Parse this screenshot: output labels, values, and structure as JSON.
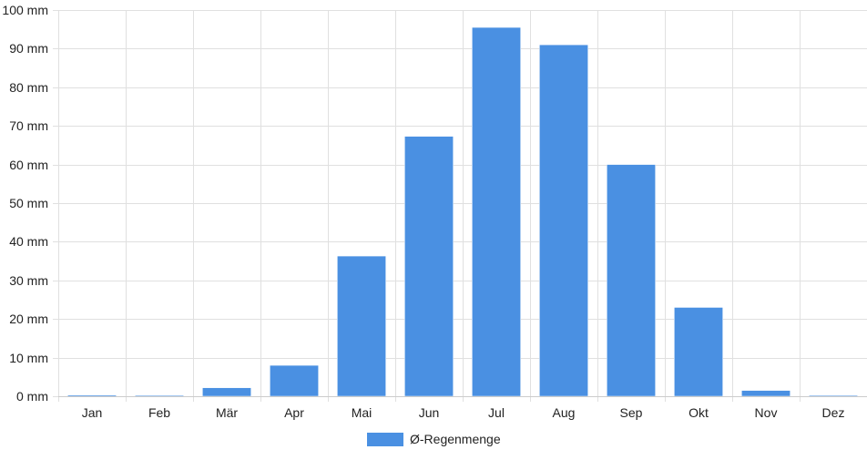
{
  "chart_data": {
    "type": "bar",
    "categories": [
      "Jan",
      "Feb",
      "Mär",
      "Apr",
      "Mai",
      "Jun",
      "Jul",
      "Aug",
      "Sep",
      "Okt",
      "Nov",
      "Dez"
    ],
    "series": [
      {
        "name": "Ø-Regenmenge",
        "values": [
          0.3,
          0.2,
          2.2,
          8.0,
          36.3,
          67.3,
          95.5,
          91.0,
          60.0,
          23.0,
          1.5,
          0.2
        ]
      }
    ],
    "ylim": [
      0,
      100
    ],
    "y_ticks": [
      0,
      10,
      20,
      30,
      40,
      50,
      60,
      70,
      80,
      90,
      100
    ],
    "y_unit": "mm",
    "grid": true,
    "legend_position": "bottom-center",
    "colors": {
      "bar_fill": "#4a90e2",
      "grid": "#e0e0e0",
      "axis": "#cccccc",
      "text": "#222222"
    }
  }
}
